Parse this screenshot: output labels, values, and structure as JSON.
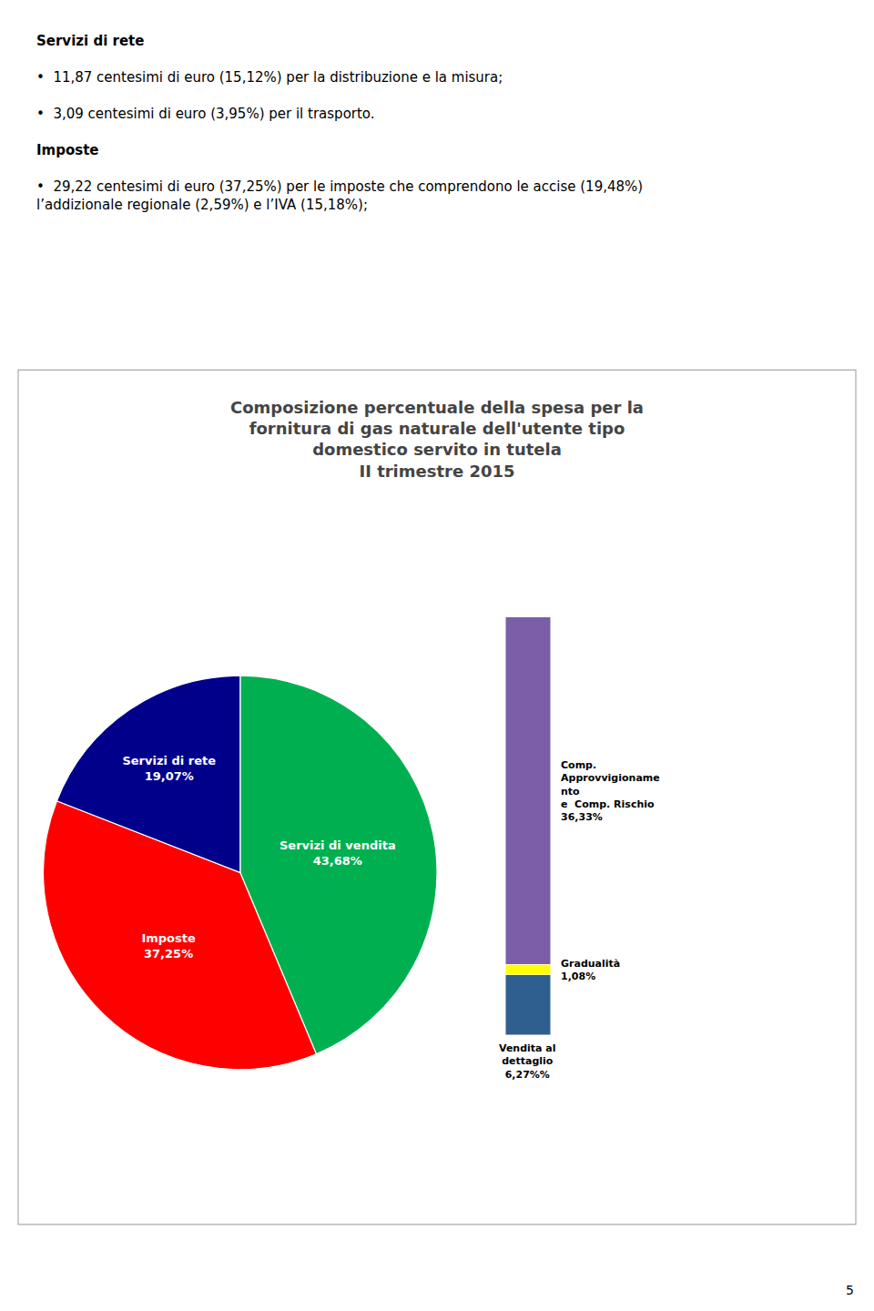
{
  "chart_data": [
    {
      "type": "pie",
      "title": "Composizione percentuale della spesa per la\nfornitura di gas naturale dell'utente tipo\ndomestico servito in tutela\nII trimestre 2015",
      "categories": [
        "Servizi di vendita",
        "Imposte",
        "Servizi di rete"
      ],
      "values": [
        43.68,
        37.25,
        19.07
      ],
      "value_labels": [
        "43,68%",
        "37,25%",
        "19,07%"
      ],
      "colors": [
        "#00b050",
        "#ff0000",
        "#00008b"
      ],
      "data_labels": true,
      "annotations": [
        "Servizi di rete",
        "•  11,87 centesimi di euro (15,12%) per la distribuzione e la misura;",
        "•  3,09 centesimi di euro (3,95%) per il trasporto.",
        "Imposte",
        "•  29,22 centesimi di euro (37,25%) per le imposte che comprendono le accise (19,48%) l’addizionale regionale (2,59%) e l’IVA (15,18%);",
        "5"
      ]
    },
    {
      "type": "bar",
      "stacked": true,
      "categories": [
        null
      ],
      "tick_labels": false,
      "ylim": [
        -8,
        44.5536
      ],
      "data_labels": true,
      "series": [
        {
          "name": "Vendita al\ndettaglio",
          "color": "#2f5f8f",
          "values": [
            6.27
          ],
          "value_labels": [
            "6,27%%"
          ]
        },
        {
          "name": "Gradualità",
          "color": "#ffff00",
          "values": [
            1.08
          ],
          "value_labels": [
            "1,08%"
          ]
        },
        {
          "name": "Comp.\nApprovvigioname\nnto\ne  Comp. Rischio",
          "color": "#7b5ea7",
          "values": [
            36.33
          ],
          "value_labels": [
            "36,33%"
          ]
        }
      ]
    }
  ]
}
